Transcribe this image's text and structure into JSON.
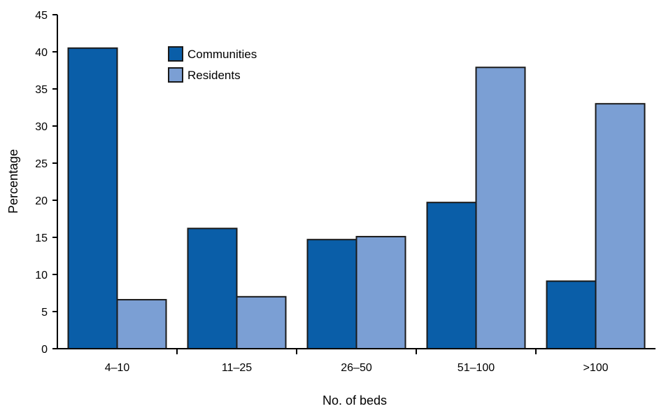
{
  "chart_data": {
    "type": "bar",
    "title": "",
    "xlabel": "No. of beds",
    "ylabel": "Percentage",
    "categories": [
      "4–10",
      "11–25",
      "26–50",
      "51–100",
      ">100"
    ],
    "series": [
      {
        "name": "Communities",
        "values": [
          40.5,
          16.2,
          14.7,
          19.7,
          9.1
        ],
        "color": "#0a5ea8"
      },
      {
        "name": "Residents",
        "values": [
          6.6,
          7.0,
          15.1,
          37.9,
          33.0
        ],
        "color": "#7b9fd4"
      }
    ],
    "ylim": [
      0,
      45
    ],
    "yticks": [
      0,
      5,
      10,
      15,
      20,
      25,
      30,
      35,
      40,
      45
    ],
    "grid": false,
    "legend_position": "top-left"
  }
}
